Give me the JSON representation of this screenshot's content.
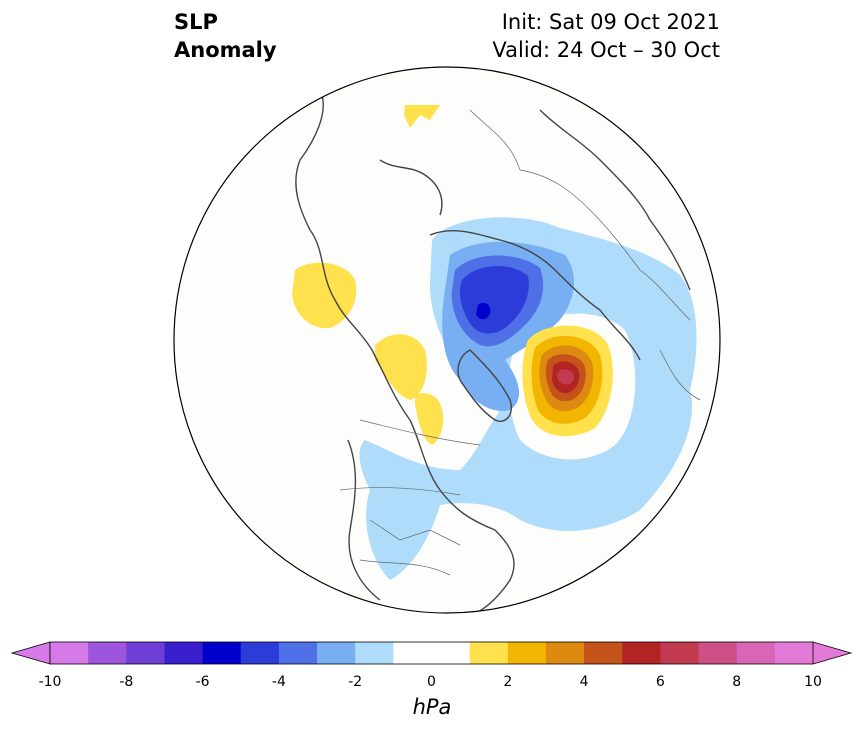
{
  "header": {
    "variable_line1": "SLP",
    "variable_line2": "Anomaly",
    "init": "Init: Sat 09 Oct 2021",
    "valid": "Valid: 24 Oct – 30 Oct"
  },
  "colorbar": {
    "unit": "hPa",
    "levels": [
      -10,
      -9,
      -8,
      -7,
      -6,
      -5,
      -4,
      -3,
      -2,
      -1,
      1,
      2,
      3,
      4,
      5,
      6,
      7,
      8,
      9,
      10
    ],
    "colors": [
      "#d57ae8",
      "#9d55dd",
      "#6e3fd6",
      "#3a1fcf",
      "#0000cc",
      "#2b3cd9",
      "#4f6fe6",
      "#78aef2",
      "#aedcfa",
      "#ffffff",
      "#ffffff",
      "#ffe04d",
      "#f2b600",
      "#de8a10",
      "#c4531a",
      "#b22424",
      "#c13a50",
      "#cc4f86",
      "#d865b5",
      "#e47ad8"
    ],
    "tick_labels": [
      "-10",
      "-8",
      "-6",
      "-4",
      "-2",
      "0",
      "2",
      "4",
      "6",
      "8",
      "10"
    ],
    "extend_low_color": "#d57ae8",
    "extend_high_color": "#e47ad8"
  }
}
